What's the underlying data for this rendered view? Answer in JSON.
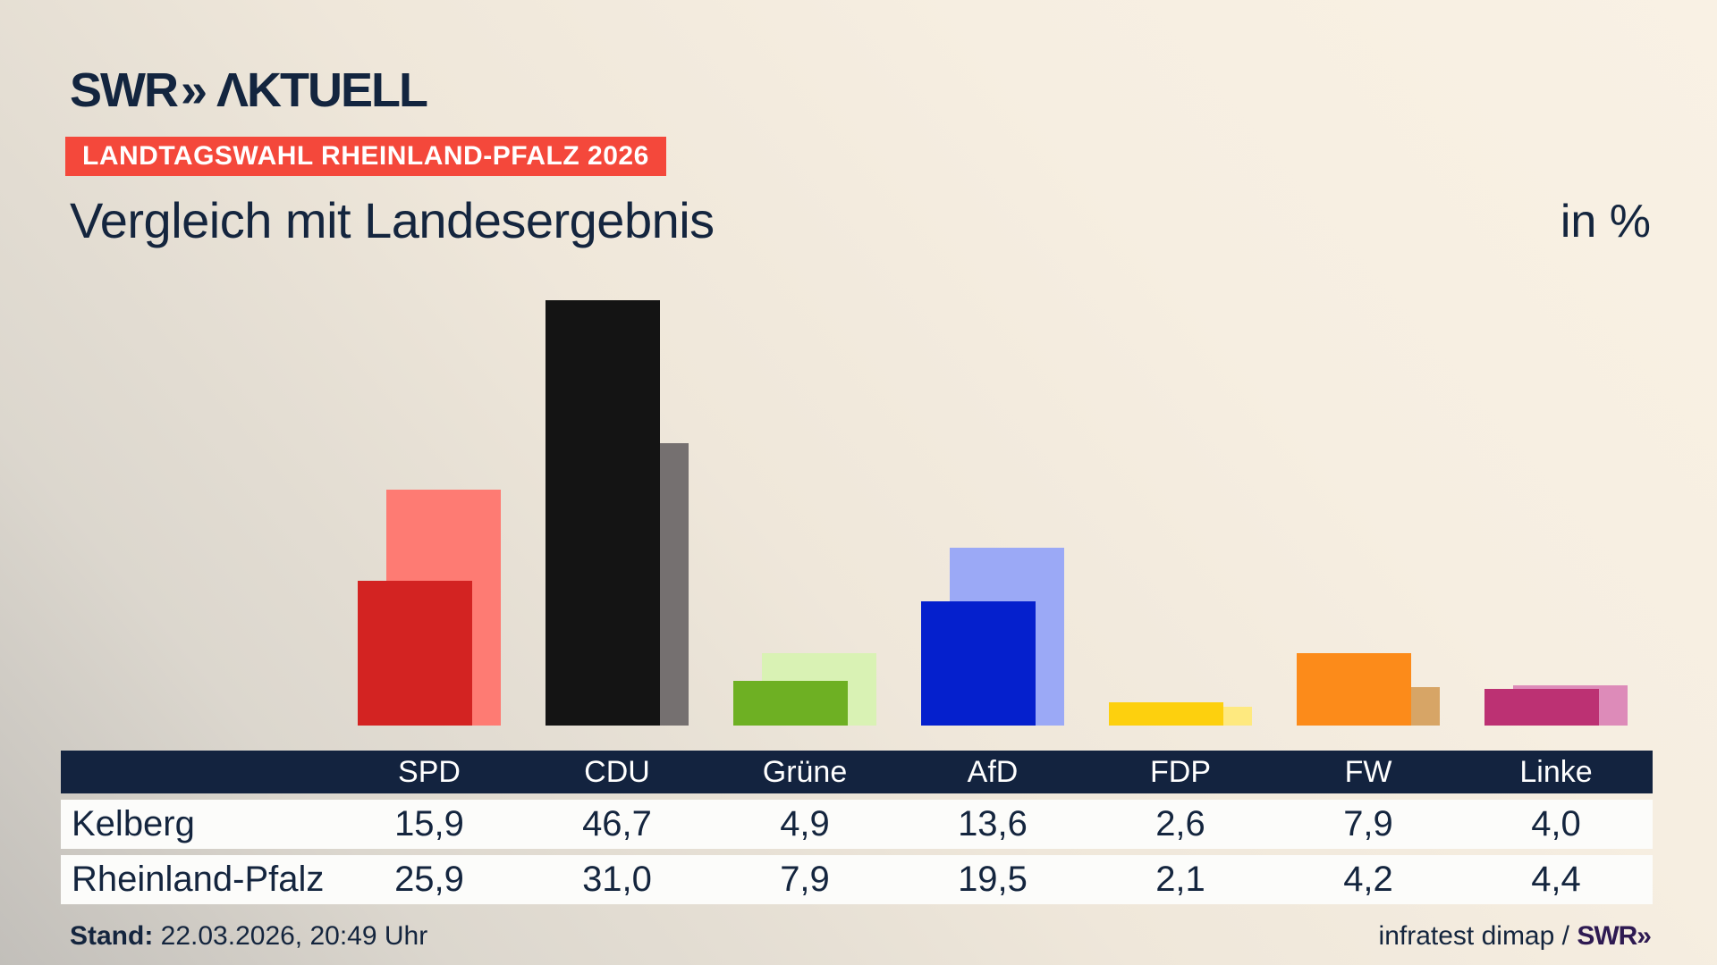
{
  "brand": {
    "logo_swr": "SWR",
    "logo_chevrons": "»",
    "logo_suffix": "ΛKTUELL"
  },
  "header": {
    "badge": "LANDTAGSWAHL RHEINLAND-PFALZ 2026",
    "title": "Vergleich mit Landesergebnis",
    "unit_label": "in %"
  },
  "chart_data": {
    "type": "bar",
    "categories": [
      "SPD",
      "CDU",
      "Grüne",
      "AfD",
      "FDP",
      "FW",
      "Linke"
    ],
    "series": [
      {
        "name": "Kelberg",
        "values": [
          15.9,
          46.7,
          4.9,
          13.6,
          2.6,
          7.9,
          4.0
        ]
      },
      {
        "name": "Rheinland-Pfalz",
        "values": [
          25.9,
          31.0,
          7.9,
          19.5,
          2.1,
          4.2,
          4.4
        ]
      }
    ],
    "colors": {
      "foreground": [
        "#d32322",
        "#141414",
        "#6eb023",
        "#0520cd",
        "#fdd00e",
        "#fc8b1a",
        "#bc3173"
      ],
      "background": [
        "#fe7b73",
        "#757070",
        "#d9f2b4",
        "#9ba9f6",
        "#fee97f",
        "#d7a566",
        "#dd8bb9"
      ]
    },
    "title": "Vergleich mit Landesergebnis",
    "unit": "%",
    "ylim": [
      0,
      50
    ],
    "grid": false,
    "legend": "table-below"
  },
  "table": {
    "corner_label": "",
    "columns": [
      "SPD",
      "CDU",
      "Grüne",
      "AfD",
      "FDP",
      "FW",
      "Linke"
    ],
    "rows": [
      {
        "label": "Kelberg",
        "values": [
          "15,9",
          "46,7",
          "4,9",
          "13,6",
          "2,6",
          "7,9",
          "4,0"
        ]
      },
      {
        "label": "Rheinland-Pfalz",
        "values": [
          "25,9",
          "31,0",
          "7,9",
          "19,5",
          "2,1",
          "4,2",
          "4,4"
        ]
      }
    ]
  },
  "footer": {
    "stand_label": "Stand:",
    "stand_value": " 22.03.2026, 20:49 Uhr",
    "source_regular": "infratest dimap / ",
    "source_brand": "SWR»"
  }
}
